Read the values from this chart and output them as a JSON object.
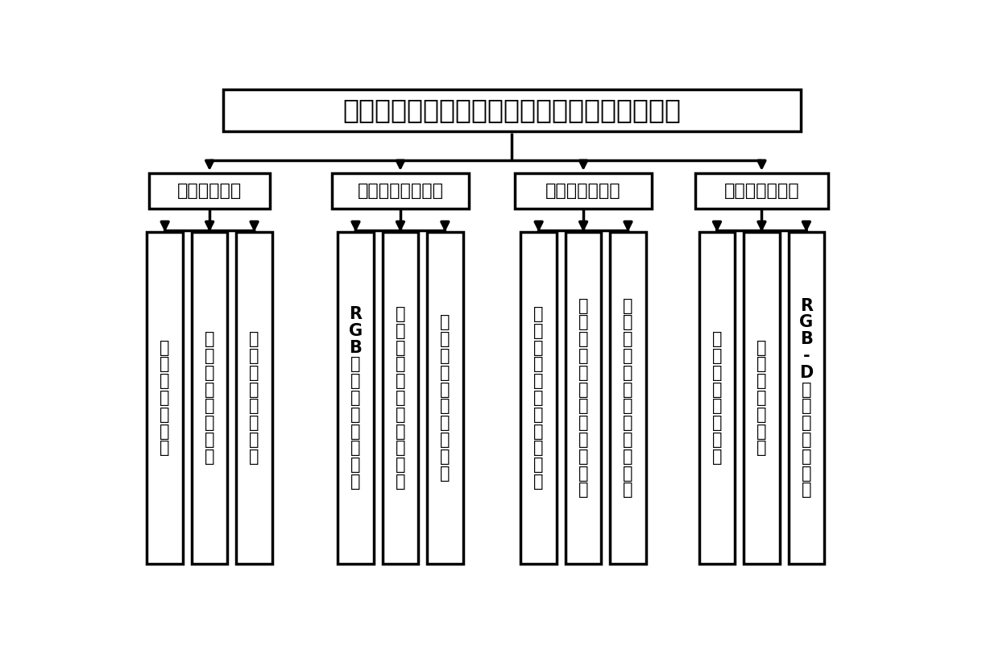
{
  "title": "基于计算机视觉的工业零件智能识别与分拣系统",
  "level1": [
    "人机交互模块",
    "工业零件识别模块",
    "机械臂控制模块",
    "避障与安全模块"
  ],
  "level2": {
    "人机交互模块": [
      "机\n器\n人\n参\n数\n设\n置",
      "各\n模\n块\n间\n实\n时\n通\n信",
      "工\n作\n状\n态\n实\n时\n显\n示"
    ],
    "工业零件识别模块": [
      "R\nG\nB\n深\n度\n信\n息\n图\n像\n采\n集",
      "实\n例\n分\n割\n模\n型\n训\n练\n与\n推\n断",
      "实\n时\n目\n标\n三\n维\n坐\n标\n计\n算"
    ],
    "机械臂控制模块": [
      "嵌\n入\n式\n子\n系\n统\n控\n制\n机\n械\n夹",
      "机\n械\n臂\n手\n眼\n标\n定\n与\n目\n标\n抓\n取",
      "机\n械\n臂\n运\n动\n轨\n迹\n与\n位\n姿\n计\n算"
    ],
    "避障与安全模块": [
      "目\n标\n检\n测\n视\n觉\n避\n障",
      "系\n统\n重\n启\n与\n恢\n复",
      "R\nG\nB\n-\nD\n深\n度\n摄\n像\n头\n探\n测"
    ]
  },
  "bg_color": "#ffffff",
  "box_color": "#ffffff",
  "line_color": "#000000",
  "text_color": "#000000",
  "border_width": 2.5,
  "title_fontsize": 24,
  "l1_fontsize": 16,
  "l2_fontsize": 15
}
